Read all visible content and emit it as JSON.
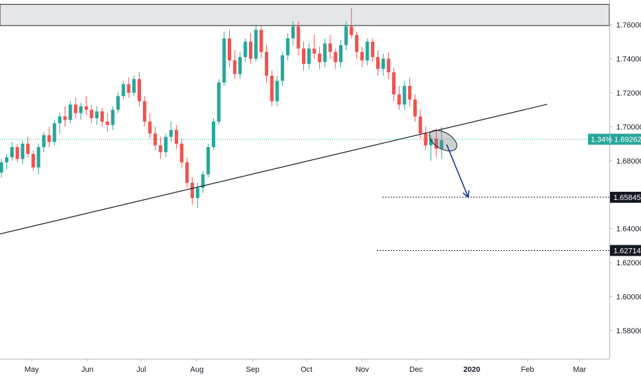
{
  "chart_data": {
    "type": "candlestick",
    "x_axis": {
      "labels": [
        "May",
        "Jun",
        "Jul",
        "Aug",
        "Sep",
        "Oct",
        "Nov",
        "Dec",
        "2020",
        "Feb",
        "Mar"
      ],
      "bold_labels": [
        "2020"
      ]
    },
    "y_axis": {
      "ticks": [
        "1.76000",
        "1.74000",
        "1.72000",
        "1.70000",
        "1.68000",
        "1.66000",
        "1.64000",
        "1.62000",
        "1.60000",
        "1.58000"
      ],
      "tick_values": [
        1.76,
        1.74,
        1.72,
        1.7,
        1.68,
        1.66,
        1.64,
        1.62,
        1.6,
        1.58
      ],
      "range": [
        1.562,
        1.772
      ]
    },
    "current_price": {
      "value": 1.69262,
      "label": "1.69262",
      "change_label": "1.34%"
    },
    "horizontal_levels": [
      {
        "value": 1.65845,
        "label": "1.65845"
      },
      {
        "value": 1.62714,
        "label": "1.62714"
      }
    ],
    "resistance_zone": {
      "low": 1.7595,
      "high": 1.772
    },
    "trendline": {
      "from": {
        "date": "2019-04-01",
        "value": 1.6338
      },
      "to": {
        "date": "2020-02-12",
        "value": 1.7132
      }
    },
    "projection_arrow": {
      "from": {
        "date": "2019-12-18",
        "value": 1.6895
      },
      "to": {
        "date": "2019-12-30",
        "value": 1.6585
      }
    },
    "highlight_ellipse": {
      "date": "2019-12-16",
      "value": 1.6918
    },
    "candles_ohlc": [
      [
        1.673,
        1.681,
        1.67,
        1.679
      ],
      [
        1.679,
        1.684,
        1.675,
        1.682
      ],
      [
        1.682,
        1.691,
        1.68,
        1.688
      ],
      [
        1.688,
        1.69,
        1.679,
        1.681
      ],
      [
        1.681,
        1.692,
        1.678,
        1.69
      ],
      [
        1.69,
        1.694,
        1.682,
        1.684
      ],
      [
        1.684,
        1.686,
        1.674,
        1.676
      ],
      [
        1.676,
        1.69,
        1.672,
        1.688
      ],
      [
        1.688,
        1.697,
        1.685,
        1.695
      ],
      [
        1.695,
        1.7,
        1.688,
        1.691
      ],
      [
        1.691,
        1.704,
        1.689,
        1.702
      ],
      [
        1.702,
        1.708,
        1.696,
        1.706
      ],
      [
        1.706,
        1.712,
        1.7,
        1.704
      ],
      [
        1.704,
        1.715,
        1.702,
        1.713
      ],
      [
        1.713,
        1.717,
        1.705,
        1.708
      ],
      [
        1.708,
        1.714,
        1.704,
        1.712
      ],
      [
        1.712,
        1.718,
        1.707,
        1.71
      ],
      [
        1.71,
        1.713,
        1.702,
        1.705
      ],
      [
        1.705,
        1.712,
        1.701,
        1.709
      ],
      [
        1.709,
        1.711,
        1.7,
        1.703
      ],
      [
        1.703,
        1.708,
        1.697,
        1.701
      ],
      [
        1.701,
        1.712,
        1.698,
        1.71
      ],
      [
        1.71,
        1.72,
        1.708,
        1.718
      ],
      [
        1.718,
        1.727,
        1.716,
        1.725
      ],
      [
        1.725,
        1.729,
        1.717,
        1.72
      ],
      [
        1.72,
        1.73,
        1.718,
        1.728
      ],
      [
        1.728,
        1.732,
        1.712,
        1.715
      ],
      [
        1.715,
        1.718,
        1.7,
        1.703
      ],
      [
        1.703,
        1.708,
        1.693,
        1.696
      ],
      [
        1.696,
        1.7,
        1.686,
        1.689
      ],
      [
        1.689,
        1.694,
        1.681,
        1.685
      ],
      [
        1.685,
        1.696,
        1.682,
        1.694
      ],
      [
        1.694,
        1.703,
        1.691,
        1.698
      ],
      [
        1.698,
        1.701,
        1.687,
        1.69
      ],
      [
        1.69,
        1.693,
        1.676,
        1.679
      ],
      [
        1.679,
        1.682,
        1.664,
        1.667
      ],
      [
        1.667,
        1.67,
        1.654,
        1.658
      ],
      [
        1.658,
        1.667,
        1.652,
        1.664
      ],
      [
        1.664,
        1.674,
        1.661,
        1.672
      ],
      [
        1.672,
        1.69,
        1.67,
        1.688
      ],
      [
        1.688,
        1.705,
        1.686,
        1.703
      ],
      [
        1.703,
        1.728,
        1.701,
        1.726
      ],
      [
        1.726,
        1.756,
        1.724,
        1.752
      ],
      [
        1.752,
        1.757,
        1.735,
        1.739
      ],
      [
        1.739,
        1.745,
        1.728,
        1.731
      ],
      [
        1.731,
        1.744,
        1.728,
        1.741
      ],
      [
        1.741,
        1.752,
        1.738,
        1.75
      ],
      [
        1.75,
        1.755,
        1.737,
        1.74
      ],
      [
        1.74,
        1.76,
        1.738,
        1.757
      ],
      [
        1.757,
        1.76,
        1.74,
        1.744
      ],
      [
        1.744,
        1.748,
        1.726,
        1.73
      ],
      [
        1.73,
        1.733,
        1.712,
        1.715
      ],
      [
        1.715,
        1.73,
        1.712,
        1.727
      ],
      [
        1.727,
        1.744,
        1.724,
        1.742
      ],
      [
        1.742,
        1.755,
        1.739,
        1.752
      ],
      [
        1.752,
        1.762,
        1.748,
        1.759
      ],
      [
        1.759,
        1.762,
        1.742,
        1.746
      ],
      [
        1.746,
        1.75,
        1.733,
        1.737
      ],
      [
        1.737,
        1.749,
        1.734,
        1.746
      ],
      [
        1.746,
        1.754,
        1.74,
        1.743
      ],
      [
        1.743,
        1.747,
        1.734,
        1.738
      ],
      [
        1.738,
        1.752,
        1.735,
        1.749
      ],
      [
        1.749,
        1.754,
        1.74,
        1.744
      ],
      [
        1.744,
        1.746,
        1.734,
        1.738
      ],
      [
        1.738,
        1.751,
        1.735,
        1.748
      ],
      [
        1.748,
        1.762,
        1.745,
        1.759
      ],
      [
        1.759,
        1.77,
        1.752,
        1.754
      ],
      [
        1.754,
        1.756,
        1.74,
        1.744
      ],
      [
        1.744,
        1.747,
        1.735,
        1.739
      ],
      [
        1.739,
        1.752,
        1.736,
        1.75
      ],
      [
        1.75,
        1.752,
        1.738,
        1.741
      ],
      [
        1.741,
        1.745,
        1.73,
        1.734
      ],
      [
        1.734,
        1.743,
        1.73,
        1.74
      ],
      [
        1.74,
        1.744,
        1.728,
        1.732
      ],
      [
        1.732,
        1.735,
        1.715,
        1.719
      ],
      [
        1.719,
        1.724,
        1.71,
        1.713
      ],
      [
        1.713,
        1.727,
        1.71,
        1.724
      ],
      [
        1.724,
        1.729,
        1.712,
        1.716
      ],
      [
        1.716,
        1.719,
        1.703,
        1.706
      ],
      [
        1.706,
        1.71,
        1.693,
        1.696
      ],
      [
        1.696,
        1.7,
        1.686,
        1.689
      ],
      [
        1.689,
        1.695,
        1.68,
        1.693
      ],
      [
        1.693,
        1.699,
        1.682,
        1.687
      ],
      [
        1.687,
        1.7,
        1.681,
        1.692
      ]
    ]
  }
}
